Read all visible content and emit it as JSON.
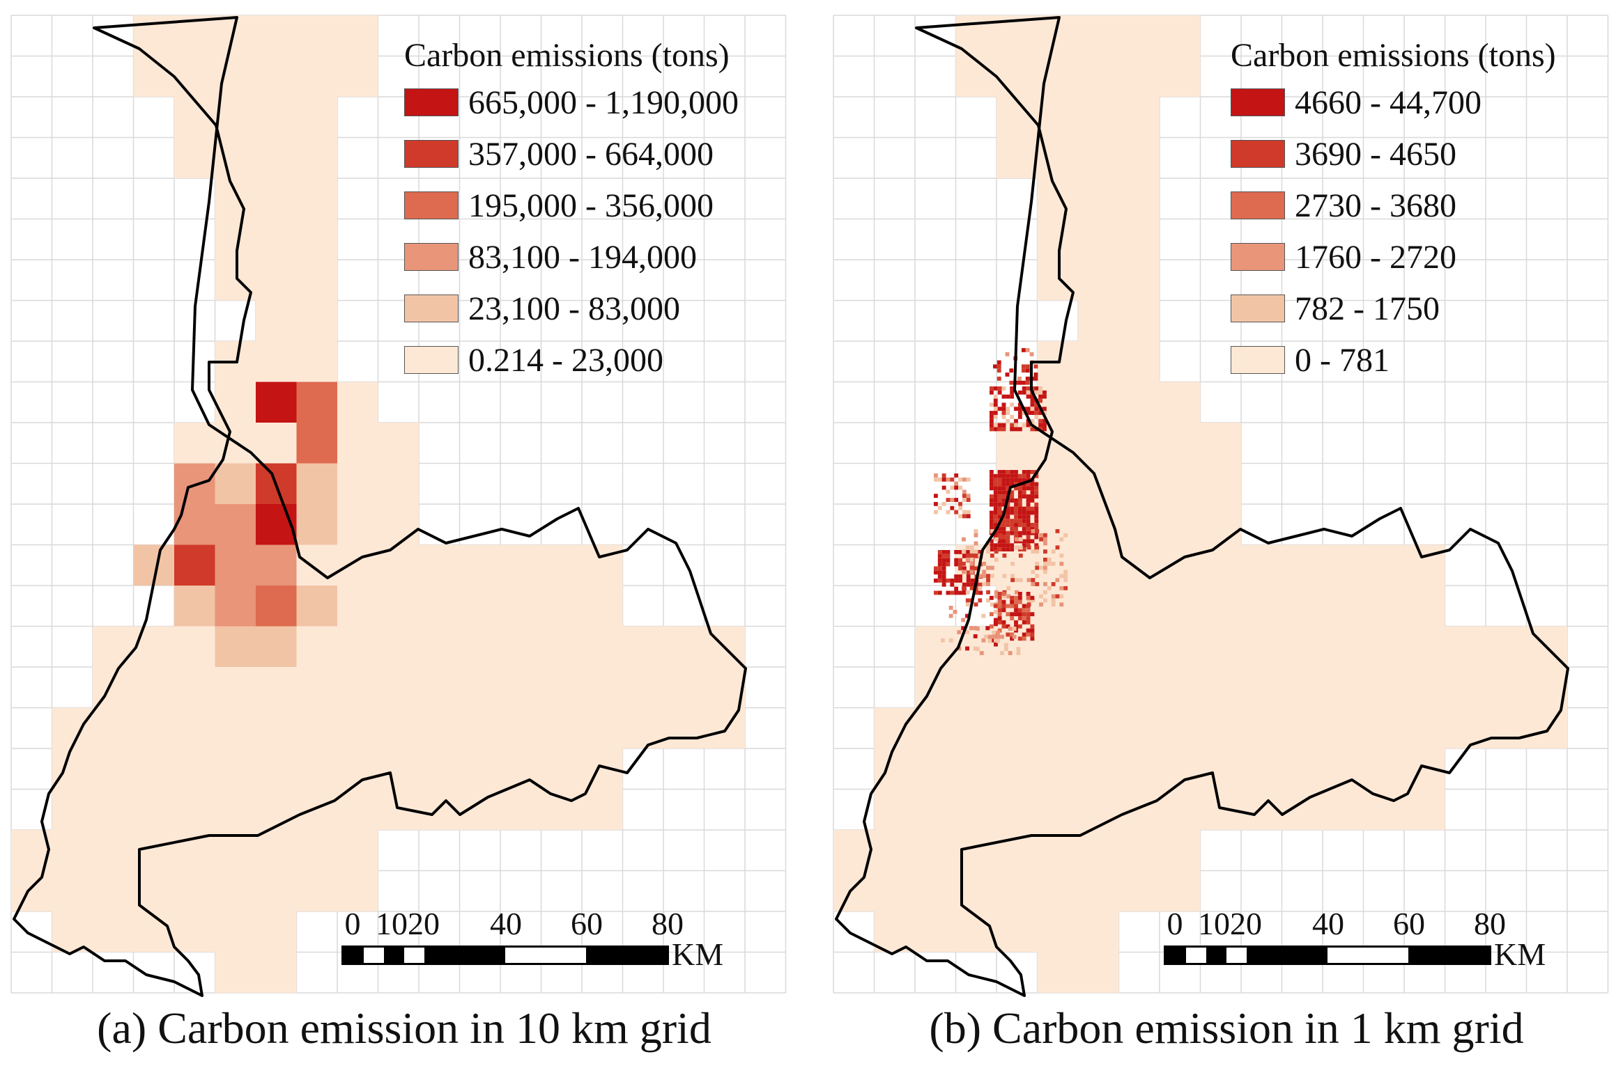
{
  "colors": {
    "class_1": "#c41414",
    "class_2": "#d03a2a",
    "class_3": "#de6a4f",
    "class_4": "#e8957a",
    "class_5": "#f2c4a6",
    "class_6": "#fde8d6",
    "grid_line": "#d9d9d9",
    "boundary": "#000000"
  },
  "panels": [
    {
      "legend_title": "Carbon emissions (tons)",
      "legend": [
        {
          "label": "665,000 - 1,190,000",
          "color": "#c41414"
        },
        {
          "label": "357,000 - 664,000",
          "color": "#d03a2a"
        },
        {
          "label": "195,000 - 356,000",
          "color": "#de6a4f"
        },
        {
          "label": "83,100 - 194,000",
          "color": "#e8957a"
        },
        {
          "label": "23,100 - 83,000",
          "color": "#f2c4a6"
        },
        {
          "label": "0.214 - 23,000",
          "color": "#fde8d6"
        }
      ],
      "scale": {
        "ticks": [
          "0",
          "10",
          "20",
          "40",
          "60",
          "80"
        ],
        "unit": "KM"
      },
      "caption": "(a) Carbon emission in 10 km grid"
    },
    {
      "legend_title": "Carbon emissions (tons)",
      "legend": [
        {
          "label": "4660 - 44,700",
          "color": "#c41414"
        },
        {
          "label": "3690 - 4650",
          "color": "#d03a2a"
        },
        {
          "label": "2730 - 3680",
          "color": "#de6a4f"
        },
        {
          "label": "1760 - 2720",
          "color": "#e8957a"
        },
        {
          "label": "782 - 1750",
          "color": "#f2c4a6"
        },
        {
          "label": "0 - 781",
          "color": "#fde8d6"
        }
      ],
      "scale": {
        "ticks": [
          "0",
          "10",
          "20",
          "40",
          "60",
          "80"
        ],
        "unit": "KM"
      },
      "caption": "(b) Carbon emission in 1 km grid"
    }
  ]
}
